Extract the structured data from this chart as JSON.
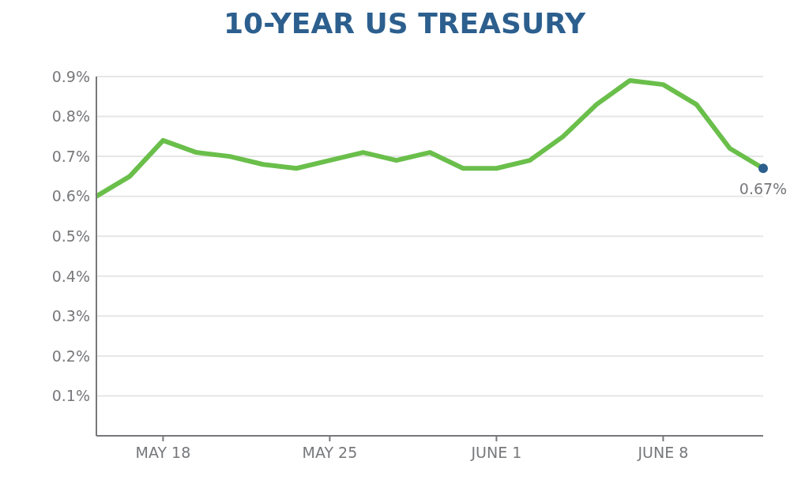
{
  "chart_data": {
    "type": "line",
    "title": "10-YEAR US TREASURY",
    "categories": [
      null,
      null,
      "MAY 18",
      null,
      null,
      null,
      null,
      "MAY 25",
      null,
      null,
      null,
      null,
      "JUNE 1",
      null,
      null,
      null,
      null,
      "JUNE 8",
      null,
      null,
      null
    ],
    "series": [
      {
        "color": "#6abf4b",
        "values": [
          0.6,
          0.65,
          0.74,
          0.71,
          0.7,
          0.68,
          0.67,
          0.69,
          0.71,
          0.69,
          0.71,
          0.67,
          0.67,
          0.69,
          0.75,
          0.83,
          0.89,
          0.88,
          0.83,
          0.72,
          0.67
        ],
        "colors": [
          null,
          null,
          null,
          null,
          null,
          null,
          null,
          null,
          null,
          null,
          null,
          null,
          null,
          null,
          null,
          null,
          null,
          null,
          null,
          null,
          "#2c5f8e"
        ],
        "value_labels": [
          null,
          null,
          null,
          null,
          null,
          null,
          null,
          null,
          null,
          null,
          null,
          null,
          null,
          null,
          null,
          null,
          null,
          null,
          null,
          null,
          "0.67%"
        ]
      }
    ],
    "ylim": [
      0,
      0.9
    ],
    "yticks": [
      {
        "value": 0,
        "label": null
      },
      {
        "value": 0.1,
        "label": "0.1%"
      },
      {
        "value": 0.2,
        "label": "0.2%"
      },
      {
        "value": 0.3,
        "label": "0.3%"
      },
      {
        "value": 0.4,
        "label": "0.4%"
      },
      {
        "value": 0.5,
        "label": "0.5%"
      },
      {
        "value": 0.6,
        "label": "0.6%"
      },
      {
        "value": 0.7,
        "label": "0.7%"
      },
      {
        "value": 0.8,
        "label": "0.8%"
      },
      {
        "value": 0.9,
        "label": "0.9%"
      }
    ],
    "grid": "y",
    "legend": false,
    "marker": "none",
    "line_style": "solid"
  }
}
